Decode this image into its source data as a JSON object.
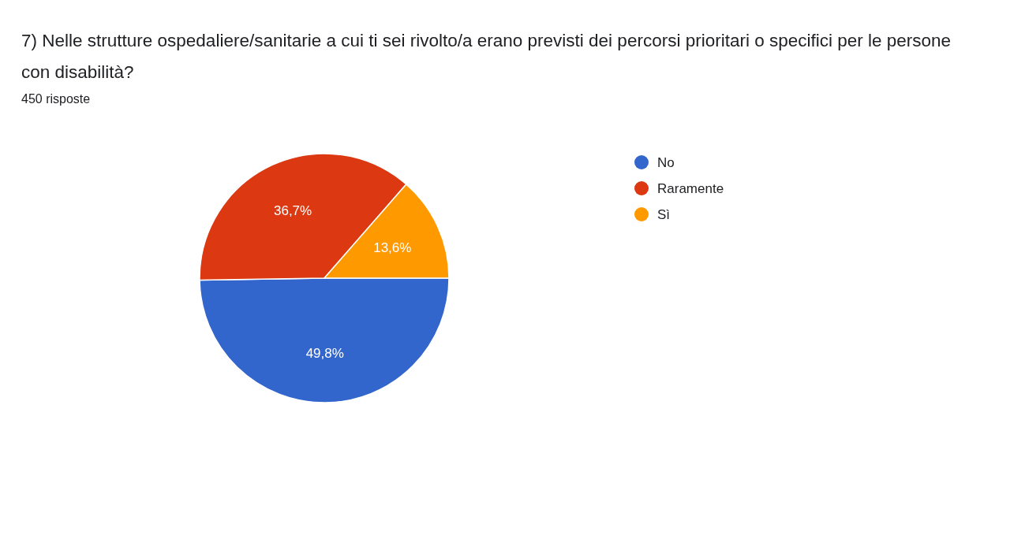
{
  "chart_data": {
    "type": "pie",
    "title": "7) Nelle strutture ospedaliere/sanitarie a cui ti sei rivolto/a erano previsti dei percorsi prioritari o specifici per le persone con disabilità?",
    "subtitle": "450 risposte",
    "categories": [
      "No",
      "Raramente",
      "Sì"
    ],
    "values": [
      49.8,
      36.7,
      13.6
    ],
    "value_labels": [
      "49,8%",
      "36,7%",
      "13,6%"
    ],
    "colors": [
      "#3366cc",
      "#dc3912",
      "#ff9900"
    ],
    "legend": "right"
  }
}
